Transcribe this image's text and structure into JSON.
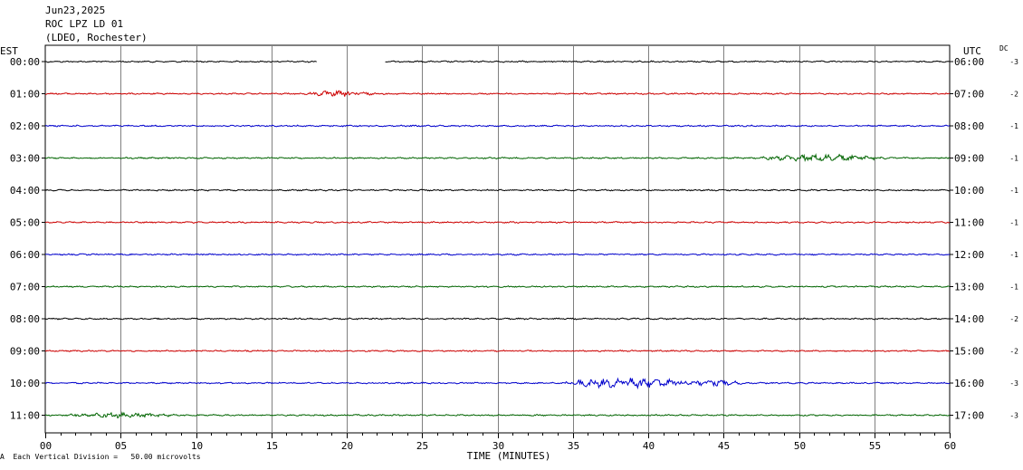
{
  "header": {
    "date": "Jun23,2025",
    "station": "ROC LPZ LD 01",
    "network": "(LDEO, Rochester)"
  },
  "labels": {
    "left_tz": "EST",
    "right_tz": "UTC",
    "dc": "DC",
    "footer_mark": "A",
    "footer": "Each Vertical Division =   50.00 microvolts"
  },
  "chart_data": {
    "type": "line",
    "xlabel": "TIME (MINUTES)",
    "xlim": [
      0,
      60
    ],
    "x_ticks": [
      "00",
      "05",
      "10",
      "15",
      "20",
      "25",
      "30",
      "35",
      "40",
      "45",
      "50",
      "55",
      "60"
    ],
    "trace_colors": [
      "#000000",
      "#cc0000",
      "#0000cc",
      "#006400"
    ],
    "rows": [
      {
        "left": "00:00",
        "right": "06:00",
        "dc": "-3",
        "color": "#000000",
        "gaps": [
          [
            18.0,
            22.5
          ]
        ],
        "events": []
      },
      {
        "left": "01:00",
        "right": "07:00",
        "dc": "-2",
        "color": "#cc0000",
        "gaps": [],
        "events": [
          [
            19.5,
            2.5,
            1.6
          ]
        ]
      },
      {
        "left": "02:00",
        "right": "08:00",
        "dc": "-1",
        "color": "#0000cc",
        "gaps": [],
        "events": []
      },
      {
        "left": "03:00",
        "right": "09:00",
        "dc": "-1",
        "color": "#006400",
        "gaps": [],
        "events": [
          [
            51.5,
            4.5,
            2.2
          ]
        ]
      },
      {
        "left": "04:00",
        "right": "10:00",
        "dc": "-1",
        "color": "#000000",
        "gaps": [],
        "events": []
      },
      {
        "left": "05:00",
        "right": "11:00",
        "dc": "-1",
        "color": "#cc0000",
        "gaps": [],
        "events": []
      },
      {
        "left": "06:00",
        "right": "12:00",
        "dc": "-1",
        "color": "#0000cc",
        "gaps": [],
        "events": []
      },
      {
        "left": "07:00",
        "right": "13:00",
        "dc": "-1",
        "color": "#006400",
        "gaps": [],
        "events": []
      },
      {
        "left": "08:00",
        "right": "14:00",
        "dc": "-2",
        "color": "#000000",
        "gaps": [],
        "events": []
      },
      {
        "left": "09:00",
        "right": "15:00",
        "dc": "-2",
        "color": "#cc0000",
        "gaps": [],
        "events": []
      },
      {
        "left": "10:00",
        "right": "16:00",
        "dc": "-3",
        "color": "#0000cc",
        "gaps": [],
        "events": [
          [
            38.8,
            5.0,
            3.4
          ],
          [
            44.5,
            2.0,
            1.6
          ]
        ]
      },
      {
        "left": "11:00",
        "right": "17:00",
        "dc": "-3",
        "color": "#006400",
        "gaps": [],
        "events": [
          [
            5.0,
            4.0,
            1.4
          ]
        ]
      }
    ]
  }
}
